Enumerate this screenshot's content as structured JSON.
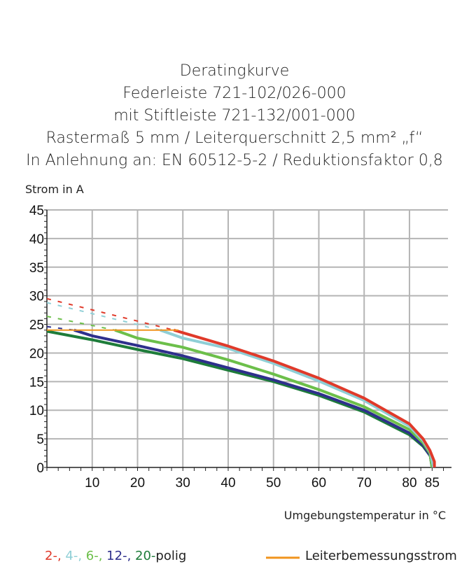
{
  "chart_data": {
    "type": "line",
    "title": [
      "Deratingkurve",
      "Federleiste 721-102/026-000",
      "mit Stiftleiste 721-132/001-000",
      "Rastermaß 5 mm / Leiterquerschnitt 2,5 mm² „f“",
      "In Anlehnung an: EN 60512-5-2 / Reduktionsfaktor 0,8"
    ],
    "ylabel": "Strom in A",
    "xlabel": "Umgebungstemperatur in  °C",
    "xlim": [
      0,
      88.5
    ],
    "ylim": [
      0,
      45
    ],
    "xticks": [
      10,
      20,
      30,
      40,
      50,
      60,
      70,
      80,
      85
    ],
    "yticks": [
      0,
      5,
      10,
      15,
      20,
      25,
      30,
      35,
      40,
      45
    ],
    "grid": true,
    "series": [
      {
        "key": "2",
        "color": "#e03a2a",
        "dashed": [
          [
            0,
            29.5
          ],
          [
            28,
            24
          ]
        ],
        "solid": [
          [
            28,
            24
          ],
          [
            40,
            21.2
          ],
          [
            50,
            18.6
          ],
          [
            60,
            15.6
          ],
          [
            70,
            12.1
          ],
          [
            80,
            7.6
          ],
          [
            83,
            5
          ],
          [
            84.5,
            3
          ],
          [
            85.5,
            1
          ],
          [
            85.5,
            0
          ]
        ]
      },
      {
        "key": "4",
        "color": "#8fcfd6",
        "dashed": [
          [
            0,
            28.8
          ],
          [
            25,
            24
          ]
        ],
        "solid": [
          [
            25,
            24
          ],
          [
            30,
            22.6
          ],
          [
            40,
            20.8
          ],
          [
            50,
            18.2
          ],
          [
            60,
            15.1
          ],
          [
            70,
            11.7
          ],
          [
            80,
            7.2
          ],
          [
            83,
            4.7
          ],
          [
            84.6,
            2.7
          ],
          [
            85.3,
            0
          ]
        ]
      },
      {
        "key": "6",
        "color": "#6cbf4a",
        "dashed": [
          [
            0,
            26.4
          ],
          [
            15,
            24
          ]
        ],
        "solid": [
          [
            15,
            24
          ],
          [
            20,
            22.6
          ],
          [
            30,
            21
          ],
          [
            40,
            18.8
          ],
          [
            50,
            16.3
          ],
          [
            60,
            13.6
          ],
          [
            70,
            10.6
          ],
          [
            80,
            6.6
          ],
          [
            83,
            4.3
          ],
          [
            84.5,
            2.5
          ],
          [
            85,
            0
          ]
        ]
      },
      {
        "key": "12",
        "color": "#2e2f8c",
        "dashed": [
          [
            0,
            24.6
          ],
          [
            6,
            24
          ]
        ],
        "solid": [
          [
            6,
            24
          ],
          [
            10,
            23
          ],
          [
            20,
            21.3
          ],
          [
            30,
            19.5
          ],
          [
            40,
            17.4
          ],
          [
            50,
            15.3
          ],
          [
            60,
            12.9
          ],
          [
            70,
            10
          ],
          [
            80,
            6
          ],
          [
            83,
            3.9
          ],
          [
            84.6,
            2
          ],
          [
            85,
            0
          ]
        ]
      },
      {
        "key": "20",
        "color": "#1e7c3a",
        "dashed": [],
        "solid": [
          [
            0,
            23.8
          ],
          [
            10,
            22.3
          ],
          [
            20,
            20.6
          ],
          [
            30,
            19
          ],
          [
            40,
            17
          ],
          [
            50,
            15
          ],
          [
            60,
            12.6
          ],
          [
            70,
            9.7
          ],
          [
            80,
            5.7
          ],
          [
            83,
            3.7
          ],
          [
            84.6,
            2
          ],
          [
            85,
            0
          ]
        ]
      }
    ],
    "rated_current": {
      "color": "#f0941e",
      "points": [
        [
          0,
          24
        ],
        [
          29,
          24
        ]
      ]
    },
    "legend": {
      "series_labels": [
        {
          "text": "2-,",
          "color": "#e03a2a"
        },
        {
          "text": " 4-,",
          "color": "#8fcfd6"
        },
        {
          "text": " 6-,",
          "color": "#6cbf4a"
        },
        {
          "text": " 12-,",
          "color": "#2e2f8c"
        },
        {
          "text": " 20-",
          "color": "#1e7c3a"
        },
        {
          "text": "polig",
          "color": "#222222"
        }
      ],
      "rated_label": "Leiterbemessungsstrom",
      "placement": "bottom"
    }
  }
}
